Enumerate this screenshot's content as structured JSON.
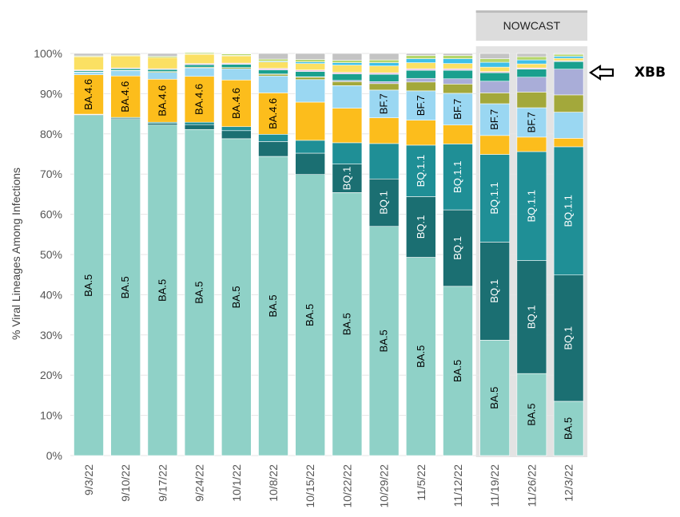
{
  "chart_data": {
    "type": "stacked-bar",
    "y_axis_title": "% Viral Lineages Among Infections",
    "ylim": [
      0,
      100
    ],
    "y_ticks": [
      "0%",
      "10%",
      "20%",
      "30%",
      "40%",
      "50%",
      "60%",
      "70%",
      "80%",
      "90%",
      "100%"
    ],
    "grid": true,
    "nowcast_label": "NOWCAST",
    "nowcast_start_index": 11,
    "annotation": {
      "text": "XBB",
      "marker": "left-arrow",
      "points_to": "12/3/22"
    },
    "categories": [
      "9/3/22",
      "9/10/22",
      "9/17/22",
      "9/24/22",
      "10/1/22",
      "10/8/22",
      "10/15/22",
      "10/22/22",
      "10/29/22",
      "11/5/22",
      "11/12/22",
      "11/19/22",
      "11/26/22",
      "12/3/22"
    ],
    "series_order_bottom_to_top": [
      "BA.5",
      "BQ.1",
      "BQ.1.1",
      "BA.4.6",
      "BF.7",
      "other-olive",
      "XBB",
      "other-teal",
      "other-pink",
      "other-yellow",
      "other-blue",
      "other-green",
      "other-grey"
    ],
    "series": [
      {
        "name": "BA.5",
        "color": "#8fd1c7",
        "label_color": "#000000",
        "values": [
          84.6,
          83.6,
          82.2,
          81.1,
          78.8,
          74.4,
          69.9,
          65.4,
          57.0,
          49.3,
          42.1,
          28.7,
          20.4,
          13.5
        ]
      },
      {
        "name": "BQ.1",
        "color": "#1b6f72",
        "label_color": "#ffffff",
        "values": [
          0.2,
          0.3,
          0.4,
          1.2,
          2.0,
          3.7,
          5.3,
          7.1,
          11.8,
          15.1,
          19.0,
          24.4,
          28.1,
          31.4
        ]
      },
      {
        "name": "BQ.1.1",
        "color": "#1f8f96",
        "label_color": "#ffffff",
        "values": [
          0.1,
          0.2,
          0.3,
          0.6,
          1.0,
          1.8,
          3.2,
          5.3,
          8.8,
          12.8,
          16.4,
          21.8,
          27.1,
          31.9
        ]
      },
      {
        "name": "BA.4.6",
        "color": "#fcbd1c",
        "label_color": "#000000",
        "values": [
          9.8,
          10.3,
          10.7,
          11.4,
          11.6,
          10.3,
          9.5,
          8.6,
          6.4,
          6.2,
          4.7,
          4.7,
          3.6,
          2.1
        ]
      },
      {
        "name": "BF.7",
        "color": "#9ad7f2",
        "label_color": "#000000",
        "values": [
          0.6,
          1.3,
          1.7,
          2.1,
          2.8,
          4.2,
          5.6,
          5.6,
          6.9,
          7.3,
          7.9,
          7.9,
          7.3,
          6.5
        ]
      },
      {
        "name": "",
        "color": "#a3a83b",
        "label_color": "#000000",
        "values": [
          0.1,
          0.1,
          0.2,
          0.2,
          0.3,
          0.4,
          0.6,
          1.0,
          1.6,
          2.2,
          2.3,
          2.7,
          3.9,
          4.3
        ]
      },
      {
        "name": "",
        "color": "#a9add8",
        "label_color": "#000000",
        "values": [
          0.0,
          0.0,
          0.0,
          0.0,
          0.0,
          0.1,
          0.1,
          0.3,
          0.5,
          0.9,
          1.3,
          2.9,
          3.7,
          6.4
        ]
      },
      {
        "name": "",
        "color": "#1aa08e",
        "label_color": "#000000",
        "values": [
          0.3,
          0.4,
          0.5,
          0.6,
          0.8,
          1.0,
          1.3,
          1.6,
          1.8,
          2.0,
          2.1,
          2.1,
          2.0,
          1.9
        ]
      },
      {
        "name": "",
        "color": "#e6c4e6",
        "label_color": "#000000",
        "values": [
          0.2,
          0.2,
          0.2,
          0.3,
          0.3,
          0.4,
          0.4,
          0.4,
          0.4,
          0.4,
          0.4,
          0.3,
          0.3,
          0.2
        ]
      },
      {
        "name": "",
        "color": "#fbe063",
        "label_color": "#000000",
        "values": [
          3.3,
          3.0,
          2.8,
          2.3,
          1.8,
          1.6,
          1.6,
          1.8,
          1.7,
          1.5,
          1.3,
          1.1,
          1.0,
          0.6
        ]
      },
      {
        "name": "",
        "color": "#3ec0e8",
        "label_color": "#000000",
        "values": [
          0.0,
          0.0,
          0.0,
          0.1,
          0.1,
          0.2,
          0.4,
          0.6,
          0.8,
          1.0,
          1.2,
          1.2,
          1.0,
          0.5
        ]
      },
      {
        "name": "",
        "color": "#b5d66a",
        "label_color": "#000000",
        "values": [
          0.2,
          0.2,
          0.3,
          0.3,
          0.4,
          0.5,
          0.6,
          0.6,
          0.7,
          0.8,
          0.8,
          0.9,
          0.8,
          0.5
        ]
      },
      {
        "name": "",
        "color": "#c4c4c4",
        "label_color": "#000000",
        "values": [
          0.6,
          0.4,
          0.7,
          -0.2,
          0.1,
          1.4,
          1.5,
          1.7,
          1.6,
          0.5,
          0.5,
          1.3,
          0.8,
          0.2
        ]
      }
    ],
    "segment_labels": [
      {
        "series": "BA.5",
        "indices": [
          0,
          1,
          2,
          3,
          4,
          5,
          6,
          7,
          8,
          9,
          10,
          11,
          12,
          13
        ]
      },
      {
        "series": "BA.4.6",
        "indices": [
          0,
          1,
          2,
          3,
          4,
          5
        ]
      },
      {
        "series": "BQ.1",
        "indices": [
          7,
          8,
          9,
          10,
          11,
          12,
          13
        ]
      },
      {
        "series": "BQ.1.1",
        "indices": [
          9,
          10,
          11,
          12,
          13
        ]
      },
      {
        "series": "BF.7",
        "indices": [
          8,
          9,
          10,
          11,
          12
        ]
      }
    ]
  }
}
